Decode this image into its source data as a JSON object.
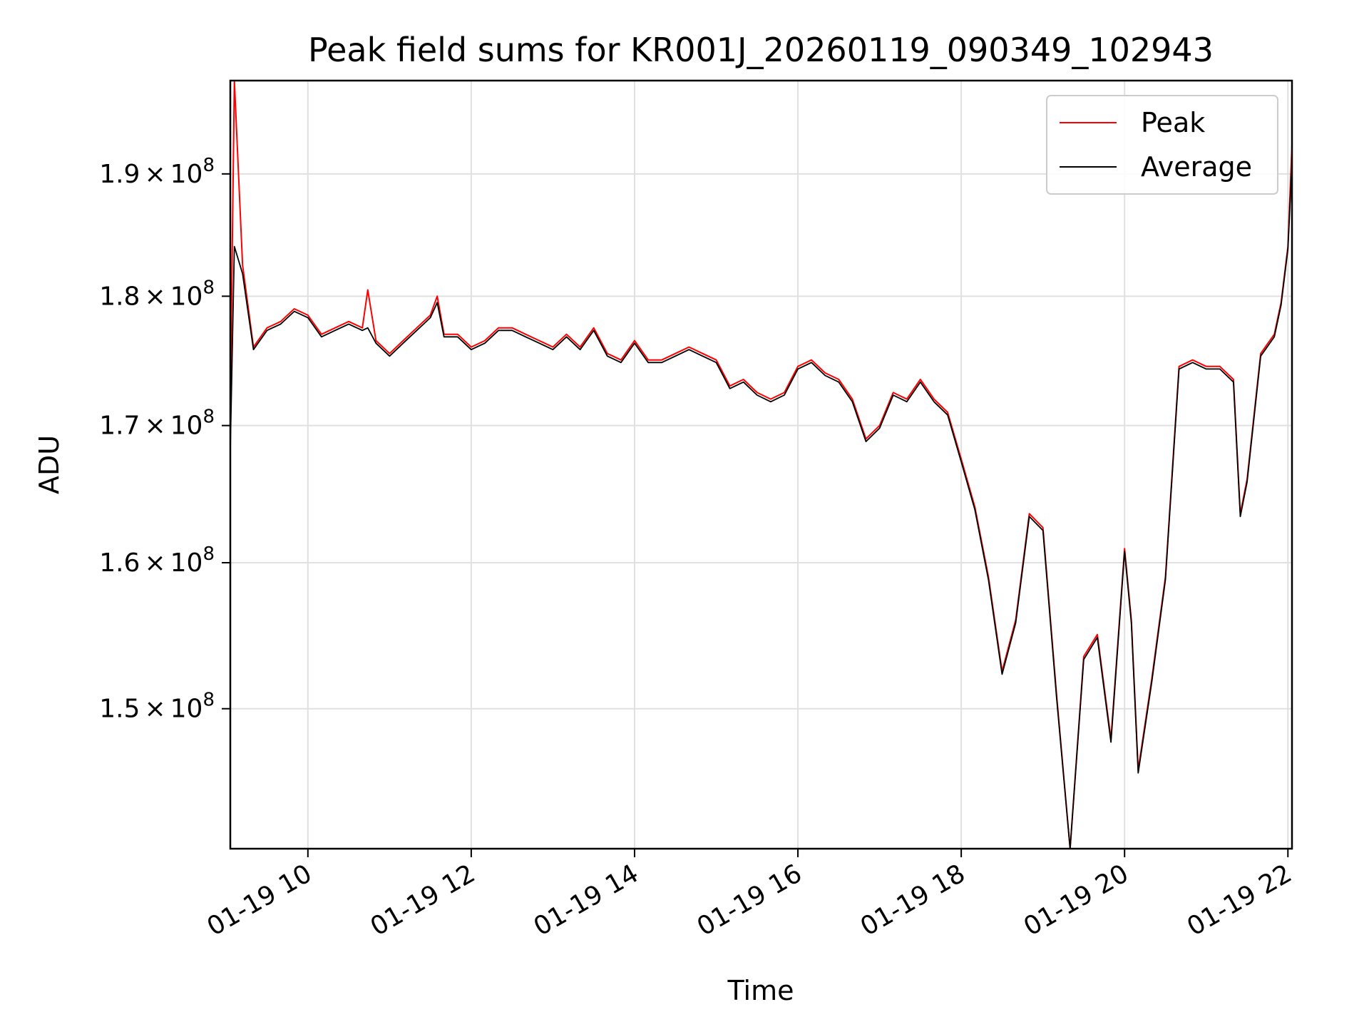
{
  "chart_data": {
    "type": "line",
    "title": "Peak field sums for KR001J_20260119_090349_102943",
    "xlabel": "Time",
    "ylabel": "ADU",
    "y_scale": "log",
    "grid": true,
    "legend_position": "top-right",
    "xlim": [
      "2026-01-19 09:03",
      "2026-01-19 22:03"
    ],
    "ylim": [
      141000000,
      198000000
    ],
    "x_ticks": [
      {
        "value": "2026-01-19 10:00",
        "label": "01-19 10"
      },
      {
        "value": "2026-01-19 12:00",
        "label": "01-19 12"
      },
      {
        "value": "2026-01-19 14:00",
        "label": "01-19 14"
      },
      {
        "value": "2026-01-19 16:00",
        "label": "01-19 16"
      },
      {
        "value": "2026-01-19 18:00",
        "label": "01-19 18"
      },
      {
        "value": "2026-01-19 20:00",
        "label": "01-19 20"
      },
      {
        "value": "2026-01-19 22:00",
        "label": "01-19 22"
      }
    ],
    "y_ticks": [
      {
        "value": 150000000,
        "mantissa": "1.5",
        "base": "10",
        "exponent": "8"
      },
      {
        "value": 160000000,
        "mantissa": "1.6",
        "base": "10",
        "exponent": "8"
      },
      {
        "value": 170000000,
        "mantissa": "1.7",
        "base": "10",
        "exponent": "8"
      },
      {
        "value": 180000000,
        "mantissa": "1.8",
        "base": "10",
        "exponent": "8"
      },
      {
        "value": 190000000,
        "mantissa": "1.9",
        "base": "10",
        "exponent": "8"
      }
    ],
    "x": [
      "2026-01-19 09:03",
      "2026-01-19 09:06",
      "2026-01-19 09:12",
      "2026-01-19 09:20",
      "2026-01-19 09:30",
      "2026-01-19 09:40",
      "2026-01-19 09:50",
      "2026-01-19 10:00",
      "2026-01-19 10:10",
      "2026-01-19 10:20",
      "2026-01-19 10:30",
      "2026-01-19 10:40",
      "2026-01-19 10:44",
      "2026-01-19 10:50",
      "2026-01-19 11:00",
      "2026-01-19 11:10",
      "2026-01-19 11:20",
      "2026-01-19 11:30",
      "2026-01-19 11:35",
      "2026-01-19 11:40",
      "2026-01-19 11:50",
      "2026-01-19 12:00",
      "2026-01-19 12:10",
      "2026-01-19 12:20",
      "2026-01-19 12:30",
      "2026-01-19 12:40",
      "2026-01-19 12:50",
      "2026-01-19 13:00",
      "2026-01-19 13:10",
      "2026-01-19 13:20",
      "2026-01-19 13:30",
      "2026-01-19 13:40",
      "2026-01-19 13:50",
      "2026-01-19 14:00",
      "2026-01-19 14:10",
      "2026-01-19 14:20",
      "2026-01-19 14:30",
      "2026-01-19 14:40",
      "2026-01-19 14:50",
      "2026-01-19 15:00",
      "2026-01-19 15:10",
      "2026-01-19 15:20",
      "2026-01-19 15:30",
      "2026-01-19 15:40",
      "2026-01-19 15:50",
      "2026-01-19 16:00",
      "2026-01-19 16:10",
      "2026-01-19 16:20",
      "2026-01-19 16:30",
      "2026-01-19 16:40",
      "2026-01-19 16:50",
      "2026-01-19 17:00",
      "2026-01-19 17:10",
      "2026-01-19 17:20",
      "2026-01-19 17:30",
      "2026-01-19 17:40",
      "2026-01-19 17:50",
      "2026-01-19 18:00",
      "2026-01-19 18:10",
      "2026-01-19 18:20",
      "2026-01-19 18:30",
      "2026-01-19 18:40",
      "2026-01-19 18:50",
      "2026-01-19 19:00",
      "2026-01-19 19:10",
      "2026-01-19 19:20",
      "2026-01-19 19:30",
      "2026-01-19 19:40",
      "2026-01-19 19:50",
      "2026-01-19 20:00",
      "2026-01-19 20:05",
      "2026-01-19 20:10",
      "2026-01-19 20:20",
      "2026-01-19 20:30",
      "2026-01-19 20:40",
      "2026-01-19 20:50",
      "2026-01-19 21:00",
      "2026-01-19 21:10",
      "2026-01-19 21:20",
      "2026-01-19 21:25",
      "2026-01-19 21:30",
      "2026-01-19 21:40",
      "2026-01-19 21:50",
      "2026-01-19 21:55",
      "2026-01-19 22:00",
      "2026-01-19 22:03"
    ],
    "series": [
      {
        "name": "Peak",
        "color": "#ff0000",
        "values": [
          171500000,
          198000000,
          182500000,
          176000000,
          177500000,
          178000000,
          179000000,
          178500000,
          177000000,
          177500000,
          178000000,
          177500000,
          180500000,
          176500000,
          175500000,
          176500000,
          177500000,
          178500000,
          180000000,
          177000000,
          177000000,
          176000000,
          176500000,
          177500000,
          177500000,
          177000000,
          176500000,
          176000000,
          177000000,
          176000000,
          177500000,
          175500000,
          175000000,
          176500000,
          175000000,
          175000000,
          175500000,
          176000000,
          175500000,
          175000000,
          173000000,
          173500000,
          172500000,
          172000000,
          172500000,
          174500000,
          175000000,
          174000000,
          173500000,
          172000000,
          169000000,
          170000000,
          172500000,
          172000000,
          173500000,
          172000000,
          171000000,
          167500000,
          164000000,
          159000000,
          152500000,
          156000000,
          163500000,
          162500000,
          151000000,
          141000000,
          153500000,
          155000000,
          148000000,
          161000000,
          156000000,
          146000000,
          152000000,
          159000000,
          174500000,
          175000000,
          174500000,
          174500000,
          173500000,
          163500000,
          166000000,
          175500000,
          177000000,
          179500000,
          184000000,
          192500000
        ]
      },
      {
        "name": "Average",
        "color": "#000000",
        "values": [
          168300000,
          184000000,
          181800000,
          175800000,
          177300000,
          177800000,
          178800000,
          178300000,
          176800000,
          177300000,
          177800000,
          177300000,
          177500000,
          176300000,
          175300000,
          176300000,
          177300000,
          178300000,
          179500000,
          176800000,
          176800000,
          175800000,
          176300000,
          177300000,
          177300000,
          176800000,
          176300000,
          175800000,
          176800000,
          175800000,
          177300000,
          175300000,
          174800000,
          176300000,
          174800000,
          174800000,
          175300000,
          175800000,
          175300000,
          174800000,
          172800000,
          173300000,
          172300000,
          171800000,
          172300000,
          174300000,
          174800000,
          173800000,
          173300000,
          171800000,
          168800000,
          169800000,
          172300000,
          171800000,
          173300000,
          171800000,
          170800000,
          167300000,
          163800000,
          158800000,
          152300000,
          155800000,
          163300000,
          162300000,
          150800000,
          141000000,
          153300000,
          154800000,
          147800000,
          160800000,
          155800000,
          145800000,
          151800000,
          158800000,
          174300000,
          174800000,
          174300000,
          174300000,
          173300000,
          163300000,
          165800000,
          175300000,
          176800000,
          179300000,
          183800000,
          191000000
        ]
      }
    ]
  }
}
